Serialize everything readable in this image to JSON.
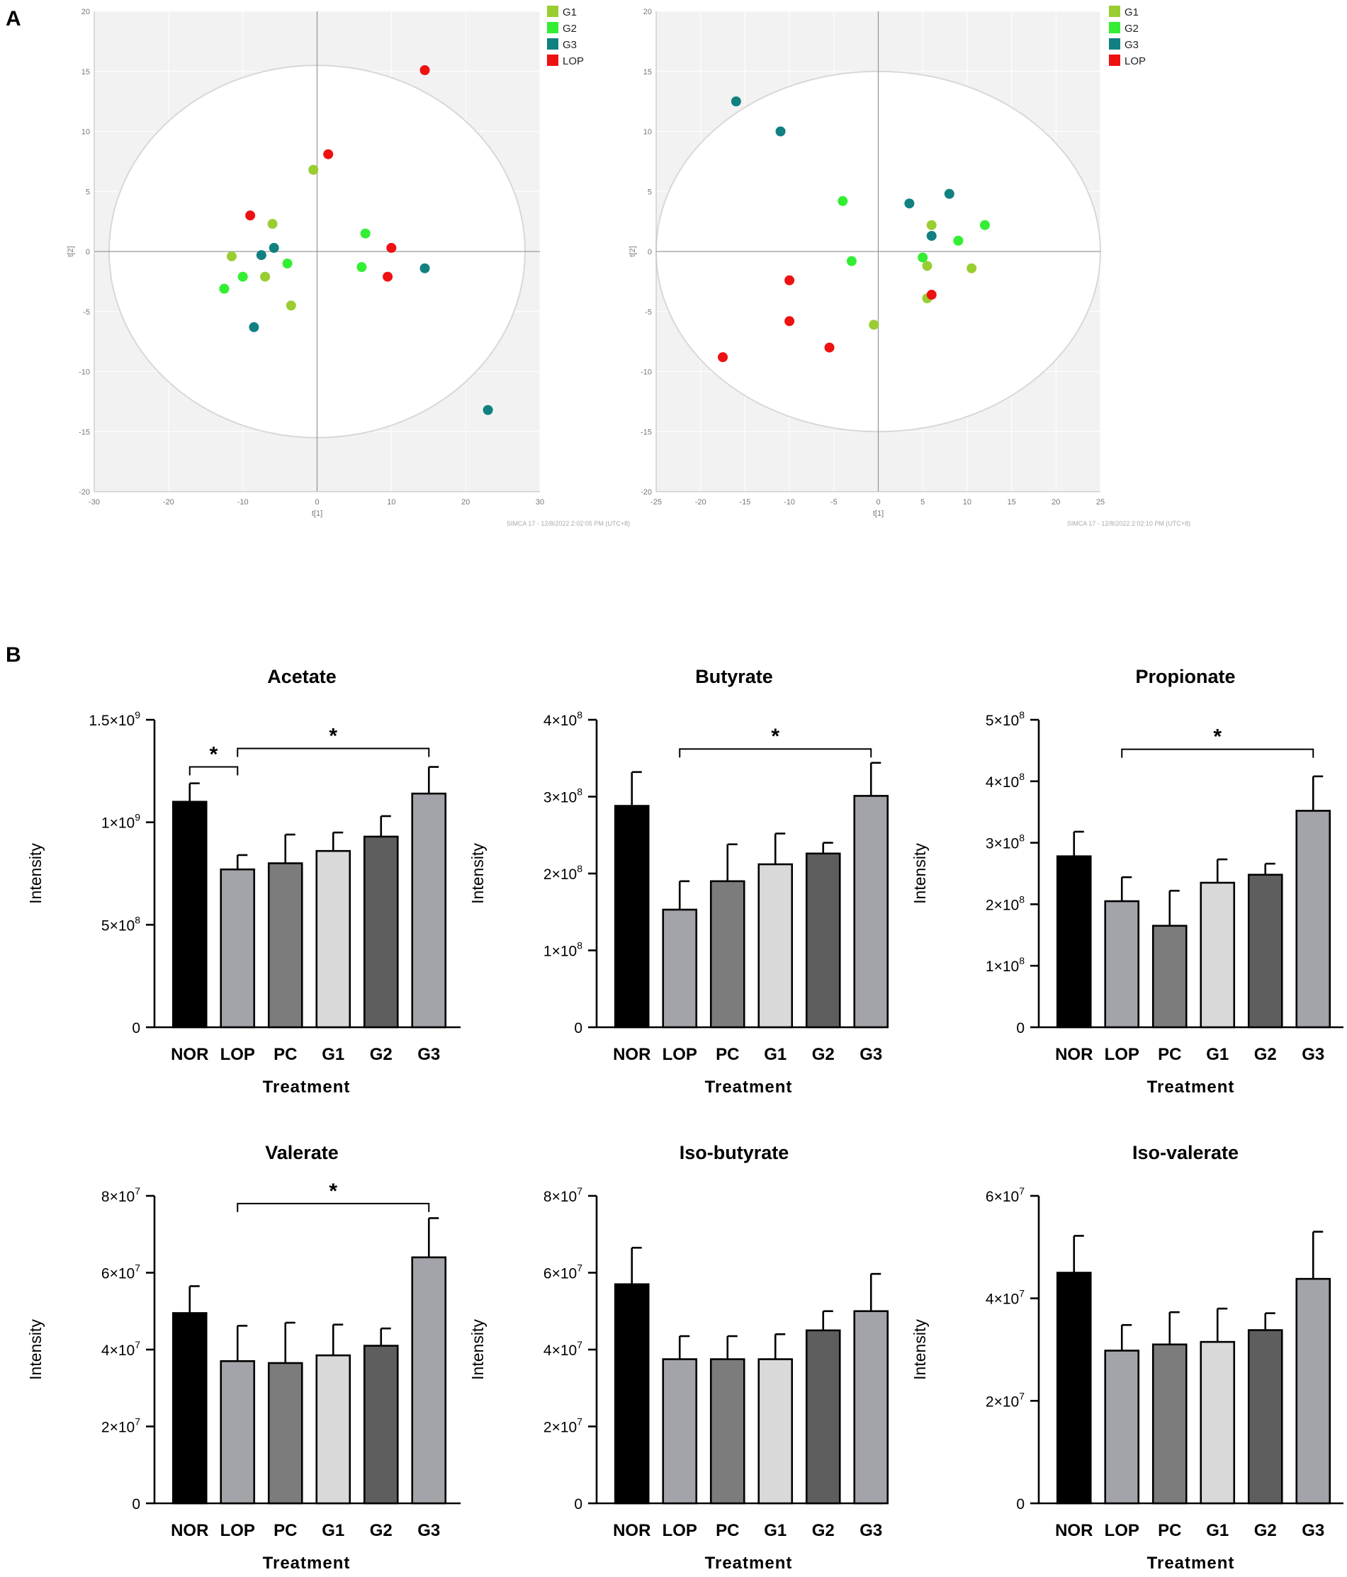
{
  "panel_labels": {
    "a": "A",
    "b": "B"
  },
  "colors": {
    "G1": "#9acd32",
    "G2": "#33ee33",
    "G3": "#118080",
    "LOP": "#ee1111",
    "plot_bg": "#f2f2f2",
    "ellipse": "#d8d8d8"
  },
  "chart_data": [
    {
      "id": "pca-left",
      "type": "scatter",
      "xlabel": "t[1]",
      "ylabel": "t[2]",
      "xlim": [
        -30,
        30
      ],
      "ylim": [
        -20,
        20
      ],
      "xticks": [
        -30,
        -20,
        -10,
        0,
        10,
        20,
        30
      ],
      "yticks": [
        -20,
        -15,
        -10,
        -5,
        0,
        5,
        10,
        15,
        20
      ],
      "ellipse": {
        "rx": 28,
        "ry": 15.5
      },
      "watermark": "SIMCA 17 - 12/8/2022 2:02:05 PM (UTC+8)",
      "legend": [
        "G1",
        "G2",
        "G3",
        "LOP"
      ],
      "series": [
        {
          "name": "G1",
          "points": [
            [
              -0.5,
              6.8
            ],
            [
              -6,
              2.3
            ],
            [
              -11.5,
              -0.4
            ],
            [
              -7,
              -2.1
            ],
            [
              -3.5,
              -4.5
            ]
          ]
        },
        {
          "name": "G2",
          "points": [
            [
              6.5,
              1.5
            ],
            [
              6,
              -1.3
            ],
            [
              -4,
              -1
            ],
            [
              -10,
              -2.1
            ],
            [
              -12.5,
              -3.1
            ]
          ]
        },
        {
          "name": "G3",
          "points": [
            [
              -7.5,
              -0.3
            ],
            [
              -5.8,
              0.3
            ],
            [
              14.5,
              -1.4
            ],
            [
              -8.5,
              -6.3
            ],
            [
              23,
              -13.2
            ]
          ]
        },
        {
          "name": "LOP",
          "points": [
            [
              14.5,
              15.1
            ],
            [
              1.5,
              8.1
            ],
            [
              -9,
              3
            ],
            [
              10,
              0.3
            ],
            [
              9.5,
              -2.1
            ]
          ]
        }
      ]
    },
    {
      "id": "pca-right",
      "type": "scatter",
      "xlabel": "t[1]",
      "ylabel": "t[2]",
      "xlim": [
        -25,
        25
      ],
      "ylim": [
        -20,
        20
      ],
      "xticks": [
        -25,
        -20,
        -15,
        -10,
        -5,
        0,
        5,
        10,
        15,
        20,
        25
      ],
      "yticks": [
        -20,
        -15,
        -10,
        -5,
        0,
        5,
        10,
        15,
        20
      ],
      "ellipse": {
        "rx": 25,
        "ry": 15
      },
      "watermark": "SIMCA 17 - 12/8/2022 2:02:10 PM (UTC+8)",
      "legend": [
        "G1",
        "G2",
        "G3",
        "LOP"
      ],
      "series": [
        {
          "name": "G1",
          "points": [
            [
              6,
              2.2
            ],
            [
              5.5,
              -1.2
            ],
            [
              10.5,
              -1.4
            ],
            [
              5.5,
              -3.9
            ],
            [
              -0.5,
              -6.1
            ]
          ]
        },
        {
          "name": "G2",
          "points": [
            [
              -4,
              4.2
            ],
            [
              12,
              2.2
            ],
            [
              9,
              0.9
            ],
            [
              5,
              -0.5
            ],
            [
              -3,
              -0.8
            ]
          ]
        },
        {
          "name": "G3",
          "points": [
            [
              -16,
              12.5
            ],
            [
              -11,
              10
            ],
            [
              3.5,
              4
            ],
            [
              8,
              4.8
            ],
            [
              6,
              1.3
            ]
          ]
        },
        {
          "name": "LOP",
          "points": [
            [
              -10,
              -2.4
            ],
            [
              -10,
              -5.8
            ],
            [
              -5.5,
              -8
            ],
            [
              -17.5,
              -8.8
            ],
            [
              6,
              -3.6
            ]
          ]
        }
      ]
    },
    {
      "id": "acetate",
      "type": "bar",
      "title": "Acetate",
      "xlabel": "Treatment",
      "ylabel": "Intensity",
      "categories": [
        "NOR",
        "LOP",
        "PC",
        "G1",
        "G2",
        "G3"
      ],
      "values": [
        1100000000.0,
        770000000.0,
        800000000.0,
        860000000.0,
        930000000.0,
        1140000000.0
      ],
      "errors": [
        90000000.0,
        70000000.0,
        140000000.0,
        90000000.0,
        100000000.0,
        130000000.0
      ],
      "ylim": [
        0,
        1500000000.0
      ],
      "yticks": [
        {
          "v": 0,
          "b": "0",
          "e": ""
        },
        {
          "v": 500000000.0,
          "b": "5×10",
          "e": "8"
        },
        {
          "v": 1000000000.0,
          "b": "1×10",
          "e": "9"
        },
        {
          "v": 1500000000.0,
          "b": "1.5×10",
          "e": "9"
        }
      ],
      "significance": [
        {
          "from": 0,
          "to": 1,
          "label": "*",
          "level": 1270000000.0
        },
        {
          "from": 1,
          "to": 5,
          "label": "*",
          "level": 1360000000.0
        }
      ]
    },
    {
      "id": "butyrate",
      "type": "bar",
      "title": "Butyrate",
      "xlabel": "Treatment",
      "ylabel": "Intensity",
      "categories": [
        "NOR",
        "LOP",
        "PC",
        "G1",
        "G2",
        "G3"
      ],
      "values": [
        288000000.0,
        153000000.0,
        190000000.0,
        212000000.0,
        226000000.0,
        301000000.0
      ],
      "errors": [
        44000000.0,
        37000000.0,
        48000000.0,
        40000000.0,
        14000000.0,
        43000000.0
      ],
      "ylim": [
        0,
        400000000.0
      ],
      "yticks": [
        {
          "v": 0,
          "b": "0",
          "e": ""
        },
        {
          "v": 100000000.0,
          "b": "1×10",
          "e": "8"
        },
        {
          "v": 200000000.0,
          "b": "2×10",
          "e": "8"
        },
        {
          "v": 300000000.0,
          "b": "3×10",
          "e": "8"
        },
        {
          "v": 400000000.0,
          "b": "4×10",
          "e": "8"
        }
      ],
      "significance": [
        {
          "from": 1,
          "to": 5,
          "label": "*",
          "level": 362000000.0
        }
      ]
    },
    {
      "id": "propionate",
      "type": "bar",
      "title": "Propionate",
      "xlabel": "Treatment",
      "ylabel": "Intensity",
      "categories": [
        "NOR",
        "LOP",
        "PC",
        "G1",
        "G2",
        "G3"
      ],
      "values": [
        278000000.0,
        205000000.0,
        165000000.0,
        235000000.0,
        248000000.0,
        352000000.0
      ],
      "errors": [
        40000000.0,
        39000000.0,
        57000000.0,
        38000000.0,
        18000000.0,
        56000000.0
      ],
      "ylim": [
        0,
        500000000.0
      ],
      "yticks": [
        {
          "v": 0,
          "b": "0",
          "e": ""
        },
        {
          "v": 100000000.0,
          "b": "1×10",
          "e": "8"
        },
        {
          "v": 200000000.0,
          "b": "2×10",
          "e": "8"
        },
        {
          "v": 300000000.0,
          "b": "3×10",
          "e": "8"
        },
        {
          "v": 400000000.0,
          "b": "4×10",
          "e": "8"
        },
        {
          "v": 500000000.0,
          "b": "5×10",
          "e": "8"
        }
      ],
      "significance": [
        {
          "from": 1,
          "to": 5,
          "label": "*",
          "level": 452000000.0
        }
      ]
    },
    {
      "id": "valerate",
      "type": "bar",
      "title": "Valerate",
      "xlabel": "Treatment",
      "ylabel": "Intensity",
      "categories": [
        "NOR",
        "LOP",
        "PC",
        "G1",
        "G2",
        "G3"
      ],
      "values": [
        49500000.0,
        37000000.0,
        36500000.0,
        38500000.0,
        41000000.0,
        64000000.0
      ],
      "errors": [
        7000000.0,
        9200000.0,
        10500000.0,
        8000000.0,
        4500000.0,
        10200000.0
      ],
      "ylim": [
        0,
        80000000.0
      ],
      "yticks": [
        {
          "v": 0,
          "b": "0",
          "e": ""
        },
        {
          "v": 20000000.0,
          "b": "2×10",
          "e": "7"
        },
        {
          "v": 40000000.0,
          "b": "4×10",
          "e": "7"
        },
        {
          "v": 60000000.0,
          "b": "6×10",
          "e": "7"
        },
        {
          "v": 80000000.0,
          "b": "8×10",
          "e": "7"
        }
      ],
      "significance": [
        {
          "from": 1,
          "to": 5,
          "label": "*",
          "level": 78000000.0
        }
      ]
    },
    {
      "id": "iso-butyrate",
      "type": "bar",
      "title": "Iso-butyrate",
      "xlabel": "Treatment",
      "ylabel": "Intensity",
      "categories": [
        "NOR",
        "LOP",
        "PC",
        "G1",
        "G2",
        "G3"
      ],
      "values": [
        57000000.0,
        37500000.0,
        37500000.0,
        37500000.0,
        45000000.0,
        50000000.0
      ],
      "errors": [
        9500000.0,
        6000000.0,
        6000000.0,
        6500000.0,
        5000000.0,
        9700000.0
      ],
      "ylim": [
        0,
        80000000.0
      ],
      "yticks": [
        {
          "v": 0,
          "b": "0",
          "e": ""
        },
        {
          "v": 20000000.0,
          "b": "2×10",
          "e": "7"
        },
        {
          "v": 40000000.0,
          "b": "4×10",
          "e": "7"
        },
        {
          "v": 60000000.0,
          "b": "6×10",
          "e": "7"
        },
        {
          "v": 80000000.0,
          "b": "8×10",
          "e": "7"
        }
      ],
      "significance": []
    },
    {
      "id": "iso-valerate",
      "type": "bar",
      "title": "Iso-valerate",
      "xlabel": "Treatment",
      "ylabel": "Intensity",
      "categories": [
        "NOR",
        "LOP",
        "PC",
        "G1",
        "G2",
        "G3"
      ],
      "values": [
        45000000.0,
        29800000.0,
        31000000.0,
        31500000.0,
        33800000.0,
        43800000.0
      ],
      "errors": [
        7200000.0,
        5000000.0,
        6300000.0,
        6500000.0,
        3300000.0,
        9200000.0
      ],
      "ylim": [
        0,
        60000000.0
      ],
      "yticks": [
        {
          "v": 0,
          "b": "0",
          "e": ""
        },
        {
          "v": 20000000.0,
          "b": "2×10",
          "e": "7"
        },
        {
          "v": 40000000.0,
          "b": "4×10",
          "e": "7"
        },
        {
          "v": 60000000.0,
          "b": "6×10",
          "e": "7"
        }
      ],
      "significance": []
    }
  ]
}
